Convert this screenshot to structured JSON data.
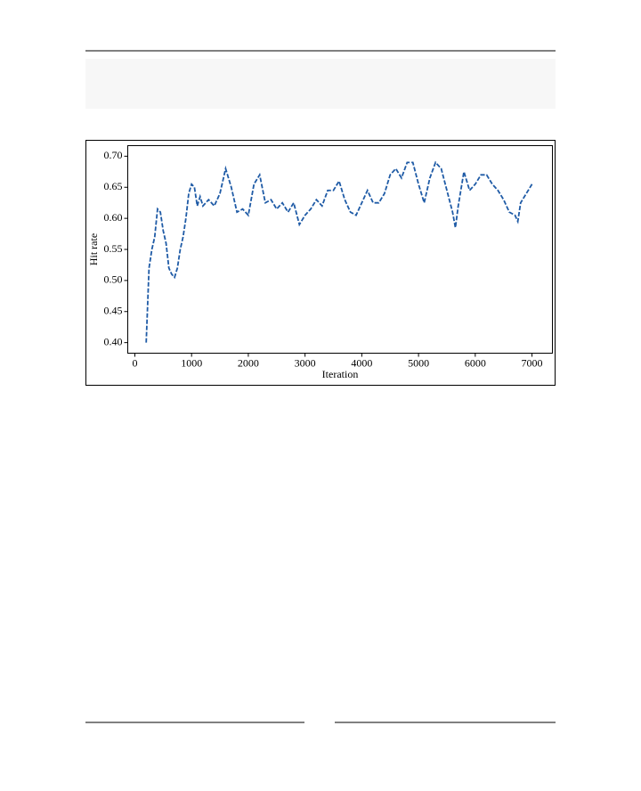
{
  "chart_data": {
    "type": "line",
    "x_label": "Iteration",
    "y_label": "Hit rate",
    "color": "#1f5ba6",
    "dashed": true,
    "x": [
      200,
      250,
      300,
      350,
      400,
      450,
      500,
      550,
      600,
      650,
      700,
      750,
      800,
      850,
      900,
      950,
      1000,
      1050,
      1100,
      1150,
      1200,
      1300,
      1400,
      1500,
      1600,
      1700,
      1800,
      1900,
      2000,
      2100,
      2200,
      2300,
      2400,
      2500,
      2600,
      2700,
      2800,
      2900,
      3000,
      3100,
      3200,
      3300,
      3400,
      3500,
      3600,
      3700,
      3800,
      3900,
      4000,
      4100,
      4200,
      4300,
      4400,
      4500,
      4600,
      4700,
      4800,
      4900,
      5000,
      5100,
      5200,
      5300,
      5400,
      5500,
      5600,
      5650,
      5700,
      5800,
      5900,
      6000,
      6100,
      6200,
      6300,
      6400,
      6500,
      6600,
      6700,
      6750,
      6800,
      6900,
      7000
    ],
    "values": [
      0.4,
      0.52,
      0.55,
      0.57,
      0.615,
      0.61,
      0.58,
      0.56,
      0.52,
      0.51,
      0.505,
      0.52,
      0.55,
      0.57,
      0.6,
      0.64,
      0.655,
      0.65,
      0.62,
      0.635,
      0.62,
      0.63,
      0.62,
      0.64,
      0.68,
      0.65,
      0.61,
      0.615,
      0.605,
      0.655,
      0.67,
      0.625,
      0.63,
      0.615,
      0.625,
      0.61,
      0.625,
      0.59,
      0.605,
      0.615,
      0.63,
      0.62,
      0.645,
      0.645,
      0.66,
      0.63,
      0.61,
      0.605,
      0.625,
      0.645,
      0.625,
      0.625,
      0.64,
      0.67,
      0.68,
      0.665,
      0.69,
      0.69,
      0.655,
      0.625,
      0.665,
      0.69,
      0.68,
      0.645,
      0.61,
      0.585,
      0.62,
      0.675,
      0.645,
      0.655,
      0.67,
      0.67,
      0.655,
      0.645,
      0.63,
      0.61,
      0.605,
      0.595,
      0.625,
      0.64,
      0.655
    ],
    "xlim": [
      -125,
      7360
    ],
    "ylim": [
      0.383,
      0.717
    ],
    "xticks": [
      0,
      1000,
      2000,
      3000,
      4000,
      5000,
      6000,
      7000
    ],
    "yticks": [
      {
        "value": 0.4,
        "label": "0.40"
      },
      {
        "value": 0.45,
        "label": "0.45"
      },
      {
        "value": 0.5,
        "label": "0.50"
      },
      {
        "value": 0.55,
        "label": "0.55"
      },
      {
        "value": 0.6,
        "label": "0.60"
      },
      {
        "value": 0.65,
        "label": "0.65"
      },
      {
        "value": 0.7,
        "label": "0.70"
      }
    ]
  }
}
